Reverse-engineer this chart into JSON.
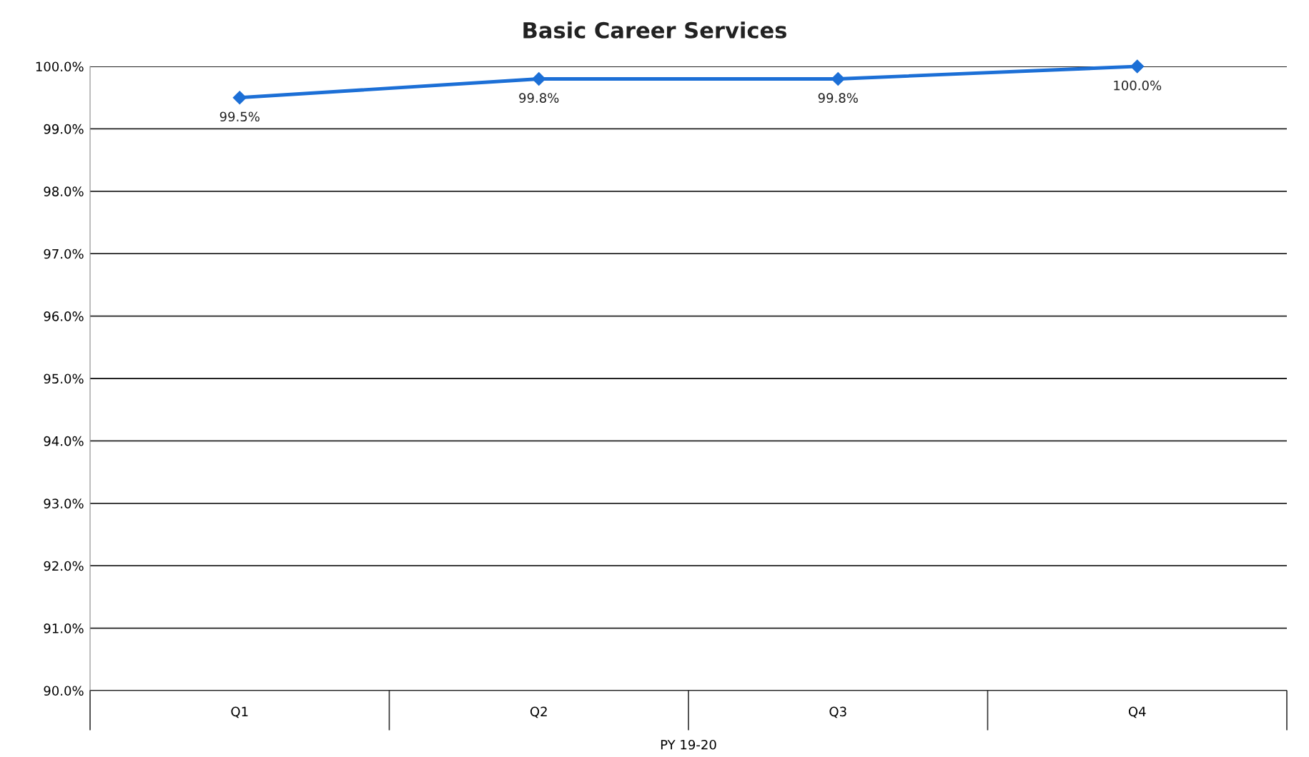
{
  "chart_data": {
    "type": "line",
    "title": "Basic Career Services",
    "xlabel": "PY 19-20",
    "categories": [
      "Q1",
      "Q2",
      "Q3",
      "Q4"
    ],
    "series": [
      {
        "color": "#1c6fd6",
        "values": [
          99.5,
          99.8,
          99.8,
          100.0
        ],
        "value_labels": [
          "99.5%",
          "99.8%",
          "99.8%",
          "100.0%"
        ]
      }
    ],
    "ylim": [
      90,
      100
    ],
    "yticks": [
      {
        "value": 90,
        "label": "90.0%"
      },
      {
        "value": 91,
        "label": "91.0%"
      },
      {
        "value": 92,
        "label": "92.0%"
      },
      {
        "value": 93,
        "label": "93.0%"
      },
      {
        "value": 94,
        "label": "94.0%"
      },
      {
        "value": 95,
        "label": "95.0%"
      },
      {
        "value": 96,
        "label": "96.0%"
      },
      {
        "value": 97,
        "label": "97.0%"
      },
      {
        "value": 98,
        "label": "98.0%"
      },
      {
        "value": 99,
        "label": "99.0%"
      },
      {
        "value": 100,
        "label": "100.0%"
      }
    ],
    "grid": "y",
    "marker": "diamond",
    "line_style": "solid"
  }
}
